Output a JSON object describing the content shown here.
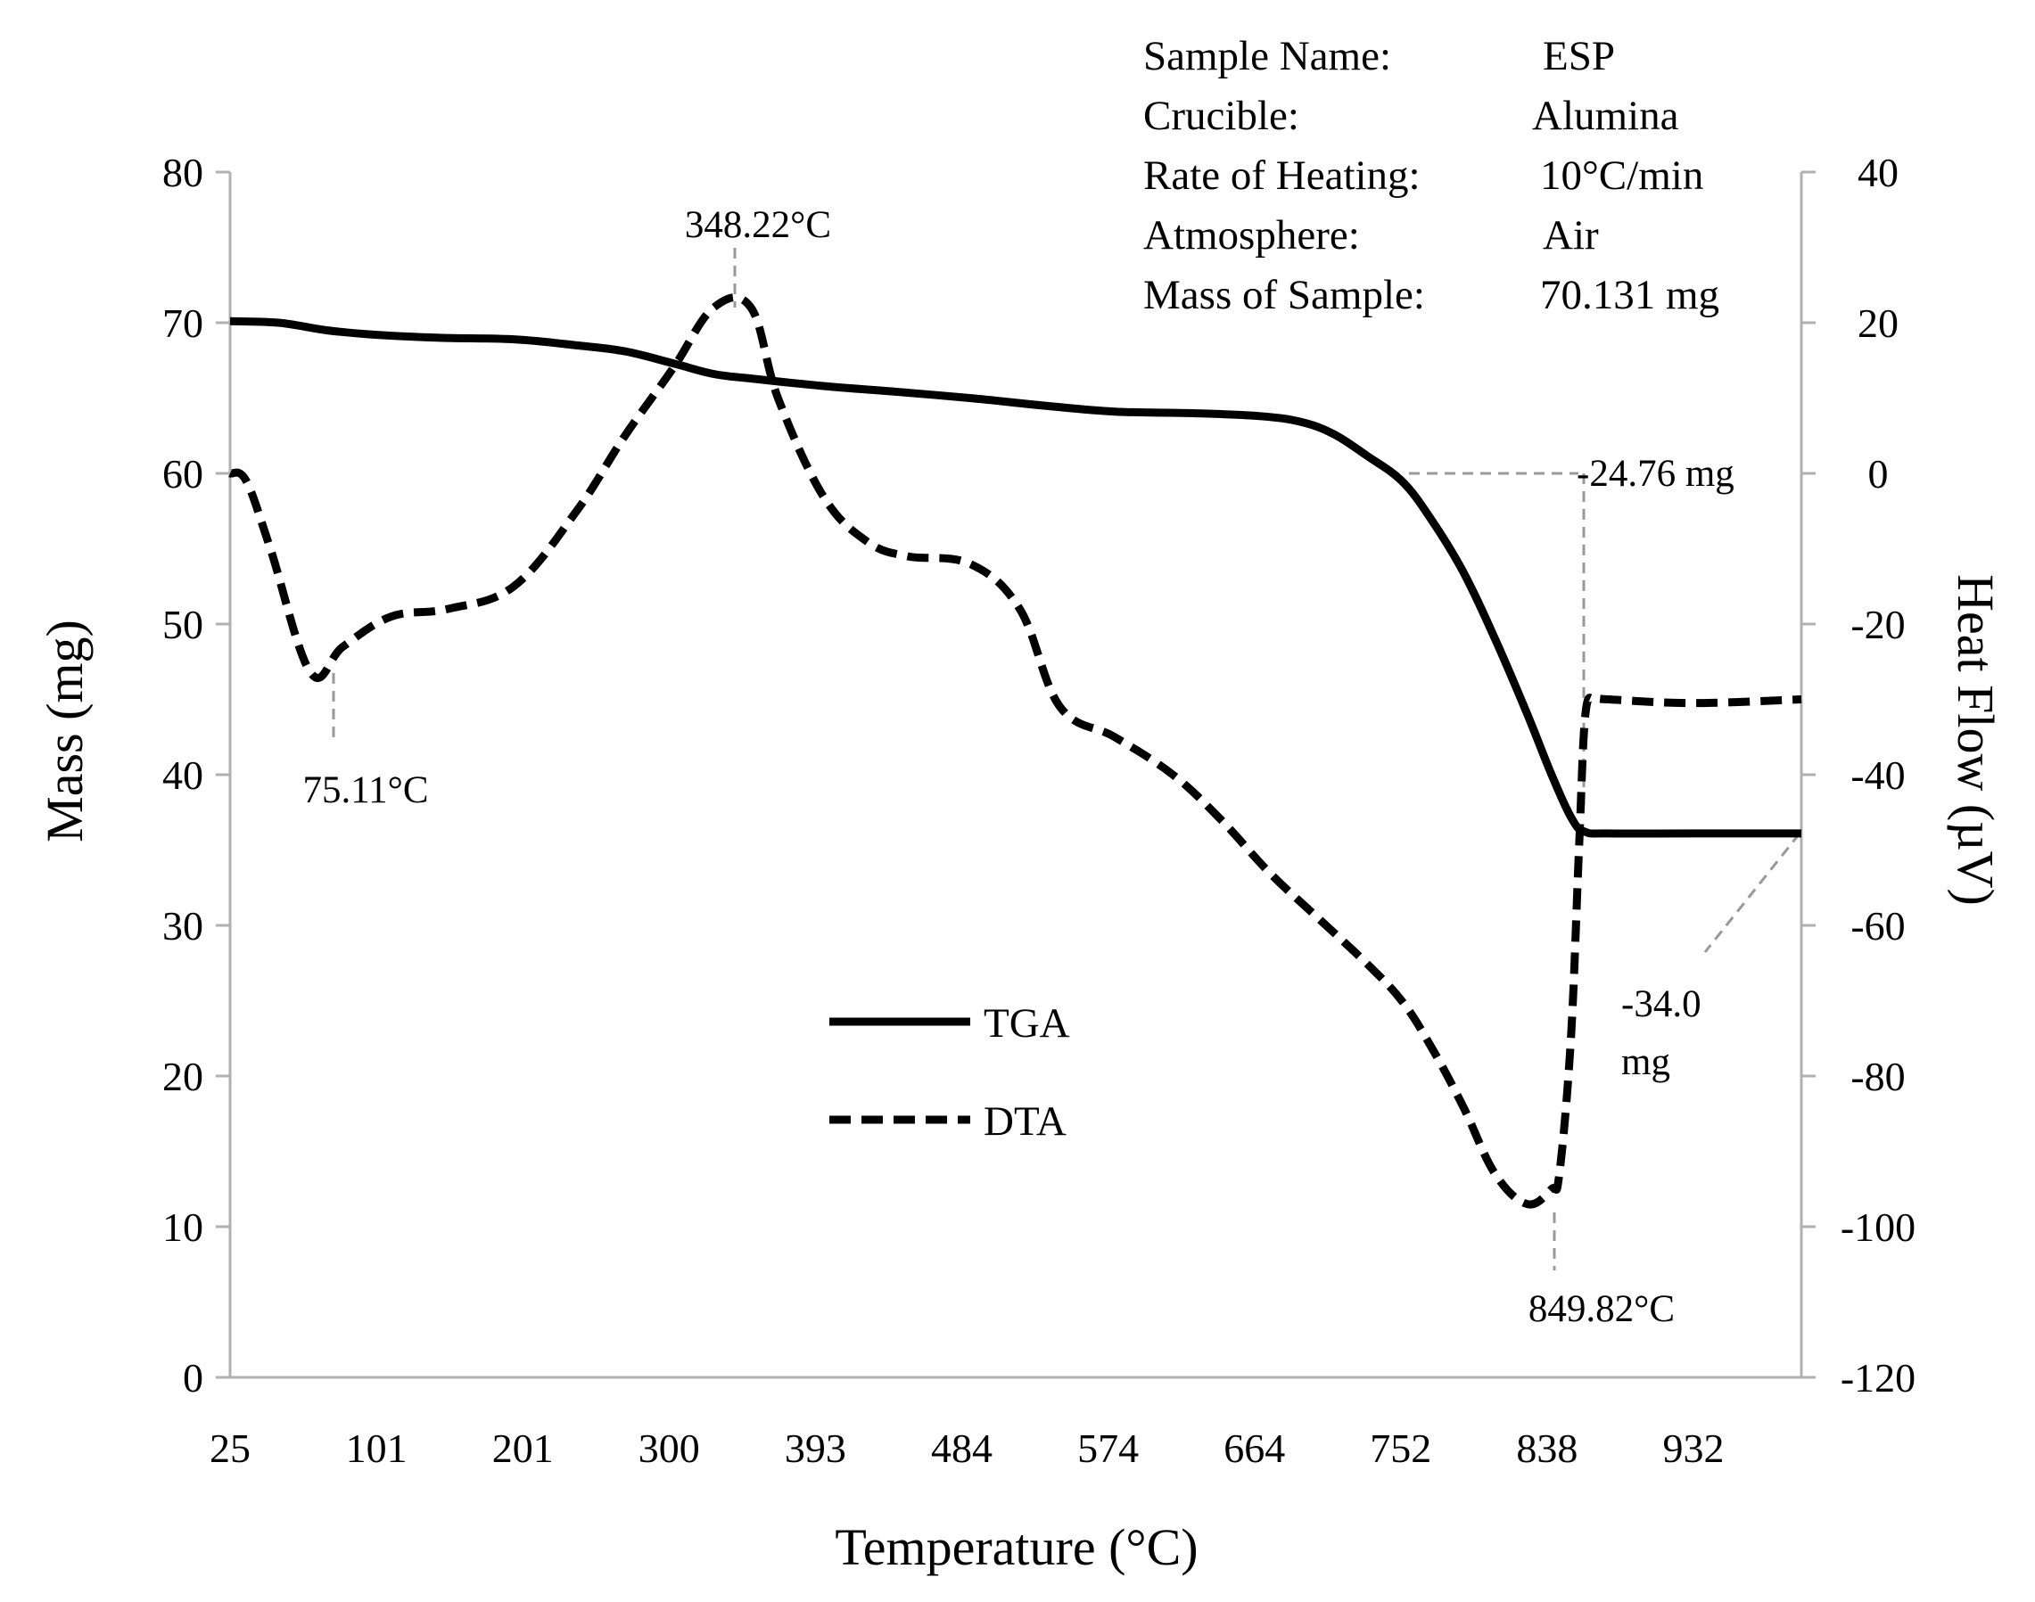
{
  "chart_data": {
    "type": "line",
    "xlabel": "Temperature (°C)",
    "ylabel_left": "Mass (mg)",
    "ylabel_right": "Heat Flow (µV)",
    "x_tick_labels": [
      "25",
      "101",
      "201",
      "300",
      "393",
      "484",
      "574",
      "664",
      "752",
      "838",
      "932"
    ],
    "y_left_ticks": [
      "0",
      "10",
      "20",
      "30",
      "40",
      "50",
      "60",
      "70",
      "80"
    ],
    "y_right_ticks": [
      "-120",
      "-100",
      "-80",
      "-60",
      "-40",
      "-20",
      "0",
      "20",
      "40"
    ],
    "ylim_left": [
      0,
      80
    ],
    "ylim_right": [
      -120,
      40
    ],
    "xlim": [
      25,
      1000
    ],
    "grid": false,
    "legend_position": "center-left",
    "series": [
      {
        "name": "TGA",
        "axis": "left",
        "style": "solid",
        "x": [
          25,
          55,
          85,
          115,
          155,
          201,
          240,
          270,
          300,
          325,
          348,
          393,
          440,
          484,
          530,
          574,
          620,
          664,
          690,
          710,
          730,
          752,
          770,
          790,
          810,
          830,
          845,
          858,
          866,
          880,
          932,
          1000
        ],
        "y": [
          70.1,
          70.0,
          69.5,
          69.2,
          69.0,
          68.9,
          68.5,
          68.1,
          67.3,
          66.6,
          66.3,
          65.8,
          65.4,
          65.0,
          64.5,
          64.1,
          64.0,
          63.8,
          63.4,
          62.6,
          61.2,
          59.5,
          57.0,
          53.5,
          49.0,
          44.0,
          40.0,
          37.0,
          36.2,
          36.1,
          36.1,
          36.1
        ]
      },
      {
        "name": "DTA",
        "axis": "right",
        "style": "dashed",
        "x": [
          25,
          35,
          50,
          75.11,
          95,
          125,
          160,
          201,
          240,
          270,
          300,
          325,
          348.22,
          365,
          393,
          420,
          445,
          484,
          515,
          540,
          574,
          610,
          640,
          670,
          700,
          730,
          752,
          770,
          790,
          810,
          830,
          845,
          849.82,
          857,
          862,
          866,
          872,
          880,
          932,
          1000
        ],
        "y": [
          0,
          -1,
          -10,
          -26.5,
          -23,
          -19,
          -18,
          -15,
          -5,
          5,
          14,
          22,
          22,
          10,
          -3,
          -9,
          -11,
          -12,
          -18,
          -31,
          -35,
          -40,
          -46,
          -53,
          -59,
          -65,
          -70,
          -76,
          -84,
          -93,
          -97,
          -95,
          -93,
          -75,
          -50,
          -32,
          -30,
          -30,
          -30.5,
          -30
        ]
      }
    ],
    "annotations": {
      "peak_1": "75.11°C",
      "peak_2": "348.22°C",
      "peak_3": "849.82°C",
      "mass_loss_1": "-24.76 mg",
      "mass_loss_2_line1": "-34.0",
      "mass_loss_2_line2": "mg"
    },
    "info_box": {
      "sample_name_label": "Sample Name:",
      "sample_name_value": "ESP",
      "crucible_label": "Crucible:",
      "crucible_value": "Alumina",
      "rate_label": "Rate of Heating:",
      "rate_value": "10°C/min",
      "atmosphere_label": "Atmosphere:",
      "atmosphere_value": "Air",
      "mass_label": "Mass of Sample:",
      "mass_value": "70.131 mg"
    }
  }
}
